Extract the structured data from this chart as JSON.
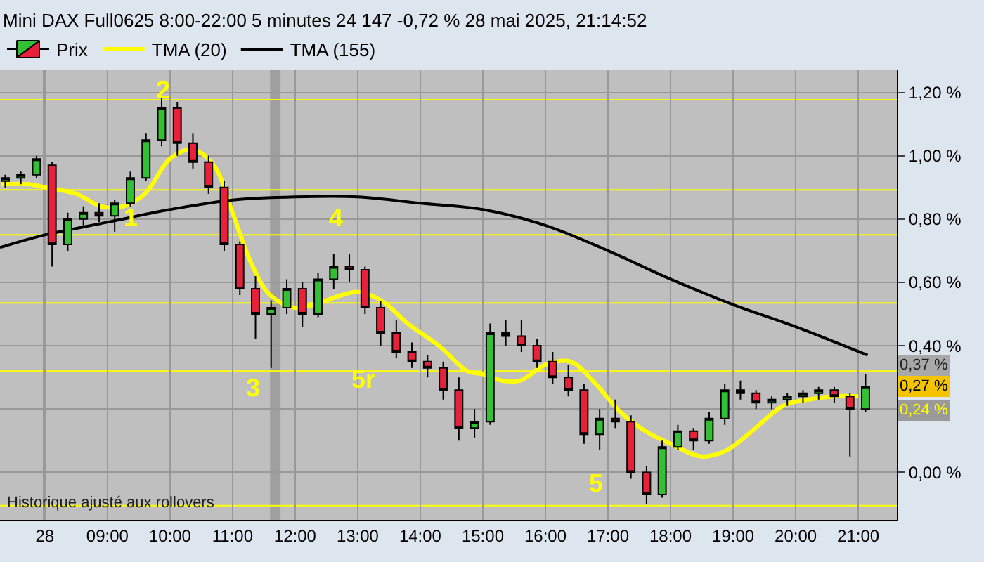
{
  "chart_data": {
    "type": "candlestick",
    "title": "Mini DAX Full0625 8:00-22:00 5 minutes 24 147 -0,72 % 28 mai 2025, 21:14:52",
    "x": [
      "2025-05-28T07:22",
      "2025-05-28T07:37",
      "2025-05-28T07:52",
      "2025-05-28T08:07",
      "2025-05-28T08:22",
      "2025-05-28T08:37",
      "2025-05-28T08:52",
      "2025-05-28T09:07",
      "2025-05-28T09:22",
      "2025-05-28T09:37",
      "2025-05-28T09:52",
      "2025-05-28T10:07",
      "2025-05-28T10:22",
      "2025-05-28T10:37",
      "2025-05-28T10:52",
      "2025-05-28T11:07",
      "2025-05-28T11:22",
      "2025-05-28T11:37",
      "2025-05-28T11:52",
      "2025-05-28T12:07",
      "2025-05-28T12:22",
      "2025-05-28T12:37",
      "2025-05-28T12:52",
      "2025-05-28T13:07",
      "2025-05-28T13:22",
      "2025-05-28T13:37",
      "2025-05-28T13:52",
      "2025-05-28T14:07",
      "2025-05-28T14:22",
      "2025-05-28T14:37",
      "2025-05-28T14:52",
      "2025-05-28T15:07",
      "2025-05-28T15:22",
      "2025-05-28T15:37",
      "2025-05-28T15:52",
      "2025-05-28T16:07",
      "2025-05-28T16:22",
      "2025-05-28T16:37",
      "2025-05-28T16:52",
      "2025-05-28T17:07",
      "2025-05-28T17:22",
      "2025-05-28T17:37",
      "2025-05-28T17:52",
      "2025-05-28T18:07",
      "2025-05-28T18:22",
      "2025-05-28T18:37",
      "2025-05-28T18:52",
      "2025-05-28T19:07",
      "2025-05-28T19:22",
      "2025-05-28T19:37",
      "2025-05-28T19:52",
      "2025-05-28T20:07",
      "2025-05-28T20:22",
      "2025-05-28T20:37",
      "2025-05-28T20:52",
      "2025-05-28T21:07"
    ],
    "series": [
      {
        "name": "Prix",
        "color": "#000000",
        "ohlc": [
          [
            0.92,
            0.94,
            0.9,
            0.93
          ],
          [
            0.93,
            0.95,
            0.91,
            0.94
          ],
          [
            0.94,
            1.0,
            0.93,
            0.99
          ],
          [
            0.97,
            0.98,
            0.65,
            0.72
          ],
          [
            0.72,
            0.82,
            0.7,
            0.8
          ],
          [
            0.8,
            0.84,
            0.78,
            0.82
          ],
          [
            0.82,
            0.85,
            0.79,
            0.81
          ],
          [
            0.81,
            0.86,
            0.76,
            0.85
          ],
          [
            0.85,
            0.95,
            0.84,
            0.93
          ],
          [
            0.93,
            1.07,
            0.92,
            1.05
          ],
          [
            1.05,
            1.19,
            1.03,
            1.15
          ],
          [
            1.15,
            1.17,
            1.0,
            1.04
          ],
          [
            1.04,
            1.07,
            0.96,
            0.98
          ],
          [
            0.98,
            1.0,
            0.88,
            0.9
          ],
          [
            0.9,
            0.92,
            0.7,
            0.72
          ],
          [
            0.72,
            0.73,
            0.56,
            0.58
          ],
          [
            0.58,
            0.62,
            0.42,
            0.5
          ],
          [
            0.5,
            0.54,
            0.33,
            0.52
          ],
          [
            0.52,
            0.61,
            0.5,
            0.58
          ],
          [
            0.58,
            0.6,
            0.46,
            0.5
          ],
          [
            0.5,
            0.63,
            0.49,
            0.61
          ],
          [
            0.61,
            0.69,
            0.58,
            0.65
          ],
          [
            0.65,
            0.69,
            0.6,
            0.64
          ],
          [
            0.64,
            0.65,
            0.5,
            0.52
          ],
          [
            0.52,
            0.54,
            0.4,
            0.44
          ],
          [
            0.44,
            0.48,
            0.36,
            0.38
          ],
          [
            0.38,
            0.41,
            0.33,
            0.35
          ],
          [
            0.35,
            0.37,
            0.3,
            0.33
          ],
          [
            0.33,
            0.35,
            0.23,
            0.26
          ],
          [
            0.26,
            0.3,
            0.1,
            0.14
          ],
          [
            0.14,
            0.2,
            0.11,
            0.16
          ],
          [
            0.16,
            0.47,
            0.15,
            0.44
          ],
          [
            0.44,
            0.48,
            0.4,
            0.43
          ],
          [
            0.43,
            0.48,
            0.38,
            0.4
          ],
          [
            0.4,
            0.42,
            0.33,
            0.35
          ],
          [
            0.35,
            0.38,
            0.28,
            0.3
          ],
          [
            0.3,
            0.34,
            0.24,
            0.26
          ],
          [
            0.26,
            0.28,
            0.09,
            0.12
          ],
          [
            0.12,
            0.2,
            0.07,
            0.17
          ],
          [
            0.17,
            0.23,
            0.14,
            0.16
          ],
          [
            0.16,
            0.18,
            -0.02,
            0.0
          ],
          [
            0.0,
            0.02,
            -0.1,
            -0.07
          ],
          [
            -0.07,
            0.1,
            -0.08,
            0.08
          ],
          [
            0.08,
            0.15,
            0.07,
            0.13
          ],
          [
            0.13,
            0.14,
            0.07,
            0.1
          ],
          [
            0.1,
            0.19,
            0.09,
            0.17
          ],
          [
            0.17,
            0.28,
            0.15,
            0.26
          ],
          [
            0.26,
            0.29,
            0.23,
            0.25
          ],
          [
            0.25,
            0.26,
            0.2,
            0.22
          ],
          [
            0.22,
            0.24,
            0.2,
            0.23
          ],
          [
            0.23,
            0.25,
            0.21,
            0.24
          ],
          [
            0.24,
            0.26,
            0.22,
            0.25
          ],
          [
            0.25,
            0.27,
            0.23,
            0.26
          ],
          [
            0.26,
            0.27,
            0.22,
            0.24
          ],
          [
            0.24,
            0.25,
            0.05,
            0.2
          ],
          [
            0.2,
            0.31,
            0.19,
            0.27
          ]
        ]
      },
      {
        "name": "TMA (20)",
        "type": "line",
        "color": "#ffff00",
        "x": [
          "2025-05-28T07:18",
          "2025-05-28T07:45",
          "2025-05-28T08:00",
          "2025-05-28T08:30",
          "2025-05-28T08:54",
          "2025-05-28T09:15",
          "2025-05-28T09:36",
          "2025-05-28T10:00",
          "2025-05-28T10:21",
          "2025-05-28T10:42",
          "2025-05-28T11:00",
          "2025-05-28T11:18",
          "2025-05-28T11:36",
          "2025-05-28T12:00",
          "2025-05-28T12:18",
          "2025-05-28T12:45",
          "2025-05-28T13:00",
          "2025-05-28T13:24",
          "2025-05-28T13:48",
          "2025-05-28T14:18",
          "2025-05-28T14:45",
          "2025-05-28T15:00",
          "2025-05-28T15:18",
          "2025-05-28T15:36",
          "2025-05-28T16:00",
          "2025-05-28T16:24",
          "2025-05-28T16:48",
          "2025-05-28T17:12",
          "2025-05-28T17:36",
          "2025-05-28T18:00",
          "2025-05-28T18:30",
          "2025-05-28T18:54",
          "2025-05-28T19:18",
          "2025-05-28T19:48",
          "2025-05-28T20:12",
          "2025-05-28T20:36",
          "2025-05-28T21:00"
        ],
        "values": [
          0.91,
          0.91,
          0.9,
          0.88,
          0.84,
          0.84,
          0.88,
          0.99,
          1.02,
          0.97,
          0.82,
          0.66,
          0.56,
          0.52,
          0.53,
          0.56,
          0.57,
          0.54,
          0.47,
          0.4,
          0.32,
          0.31,
          0.29,
          0.29,
          0.34,
          0.35,
          0.28,
          0.19,
          0.13,
          0.09,
          0.05,
          0.07,
          0.13,
          0.21,
          0.23,
          0.24,
          0.24
        ]
      },
      {
        "name": "TMA (155)",
        "type": "line",
        "color": "#000000",
        "x": [
          "2025-05-28T07:17",
          "2025-05-28T08:00",
          "2025-05-28T09:00",
          "2025-05-28T10:00",
          "2025-05-28T11:00",
          "2025-05-28T12:00",
          "2025-05-28T13:00",
          "2025-05-28T14:00",
          "2025-05-28T15:00",
          "2025-05-28T16:00",
          "2025-05-28T17:00",
          "2025-05-28T18:00",
          "2025-05-28T19:00",
          "2025-05-28T20:00",
          "2025-05-28T21:09"
        ],
        "values": [
          0.71,
          0.75,
          0.79,
          0.83,
          0.86,
          0.87,
          0.87,
          0.85,
          0.83,
          0.78,
          0.7,
          0.61,
          0.53,
          0.46,
          0.37
        ]
      }
    ],
    "xlim": [
      "2025-05-28T07:17",
      "2025-05-28T21:37"
    ],
    "xticks": [
      {
        "value": "2025-05-28T08:00",
        "label": "28"
      },
      {
        "value": "2025-05-28T09:00",
        "label": "09:00"
      },
      {
        "value": "2025-05-28T10:00",
        "label": "10:00"
      },
      {
        "value": "2025-05-28T11:00",
        "label": "11:00"
      },
      {
        "value": "2025-05-28T12:00",
        "label": "12:00"
      },
      {
        "value": "2025-05-28T13:00",
        "label": "13:00"
      },
      {
        "value": "2025-05-28T14:00",
        "label": "14:00"
      },
      {
        "value": "2025-05-28T15:00",
        "label": "15:00"
      },
      {
        "value": "2025-05-28T16:00",
        "label": "16:00"
      },
      {
        "value": "2025-05-28T17:00",
        "label": "17:00"
      },
      {
        "value": "2025-05-28T18:00",
        "label": "18:00"
      },
      {
        "value": "2025-05-28T19:00",
        "label": "19:00"
      },
      {
        "value": "2025-05-28T20:00",
        "label": "20:00"
      },
      {
        "value": "2025-05-28T21:00",
        "label": "21:00"
      }
    ],
    "ylim": [
      -0.15,
      1.27
    ],
    "yticks": [
      {
        "value": 0,
        "label": "0,00 %"
      },
      {
        "value": 0.2,
        "label": null
      },
      {
        "value": 0.4,
        "label": "0,40 %"
      },
      {
        "value": 0.6,
        "label": "0,60 %"
      },
      {
        "value": 0.8,
        "label": "0,80 %"
      },
      {
        "value": 1.0,
        "label": "1,00 %"
      },
      {
        "value": 1.2,
        "label": "1,20 %"
      }
    ],
    "grid": true,
    "legend": "top left",
    "ref_lines": [
      {
        "axis": "y",
        "value": 1.177,
        "color": "#ffff00"
      },
      {
        "axis": "y",
        "value": 0.892,
        "color": "#ffff00"
      },
      {
        "axis": "y",
        "value": 0.75,
        "color": "#ffff00"
      },
      {
        "axis": "y",
        "value": 0.535,
        "color": "#ffff00"
      },
      {
        "axis": "y",
        "value": 0.32,
        "color": "#ffff00"
      },
      {
        "axis": "y",
        "value": -0.105,
        "color": "#ffff00"
      },
      {
        "axis": "x",
        "value": "2025-05-28T08:00",
        "color": "#000000"
      }
    ],
    "bands": [
      {
        "axis": "x",
        "from": "2025-05-28T11:36",
        "to": "2025-05-28T11:46",
        "color": "#8a8a8a"
      }
    ],
    "annotations": [
      {
        "text": "1",
        "x": "2025-05-28T09:22",
        "y": 0.75
      },
      {
        "text": "2",
        "x": "2025-05-28T09:53",
        "y": 1.21
      },
      {
        "text": "3",
        "x": "2025-05-28T11:20",
        "y": 0.32
      },
      {
        "text": "4",
        "x": "2025-05-28T12:39",
        "y": 0.75
      },
      "5r",
      "5",
      {
        "text": "0,37 %",
        "x": "2025-05-28T21:09",
        "y": 0.37
      },
      {
        "text": "0,27 %",
        "x": "2025-05-28T21:07",
        "y": 0.27
      },
      {
        "text": "0,24 %",
        "x": "2025-05-28T21:00",
        "y": 0.24
      },
      "Historique ajusté aux rollovers"
    ]
  }
}
